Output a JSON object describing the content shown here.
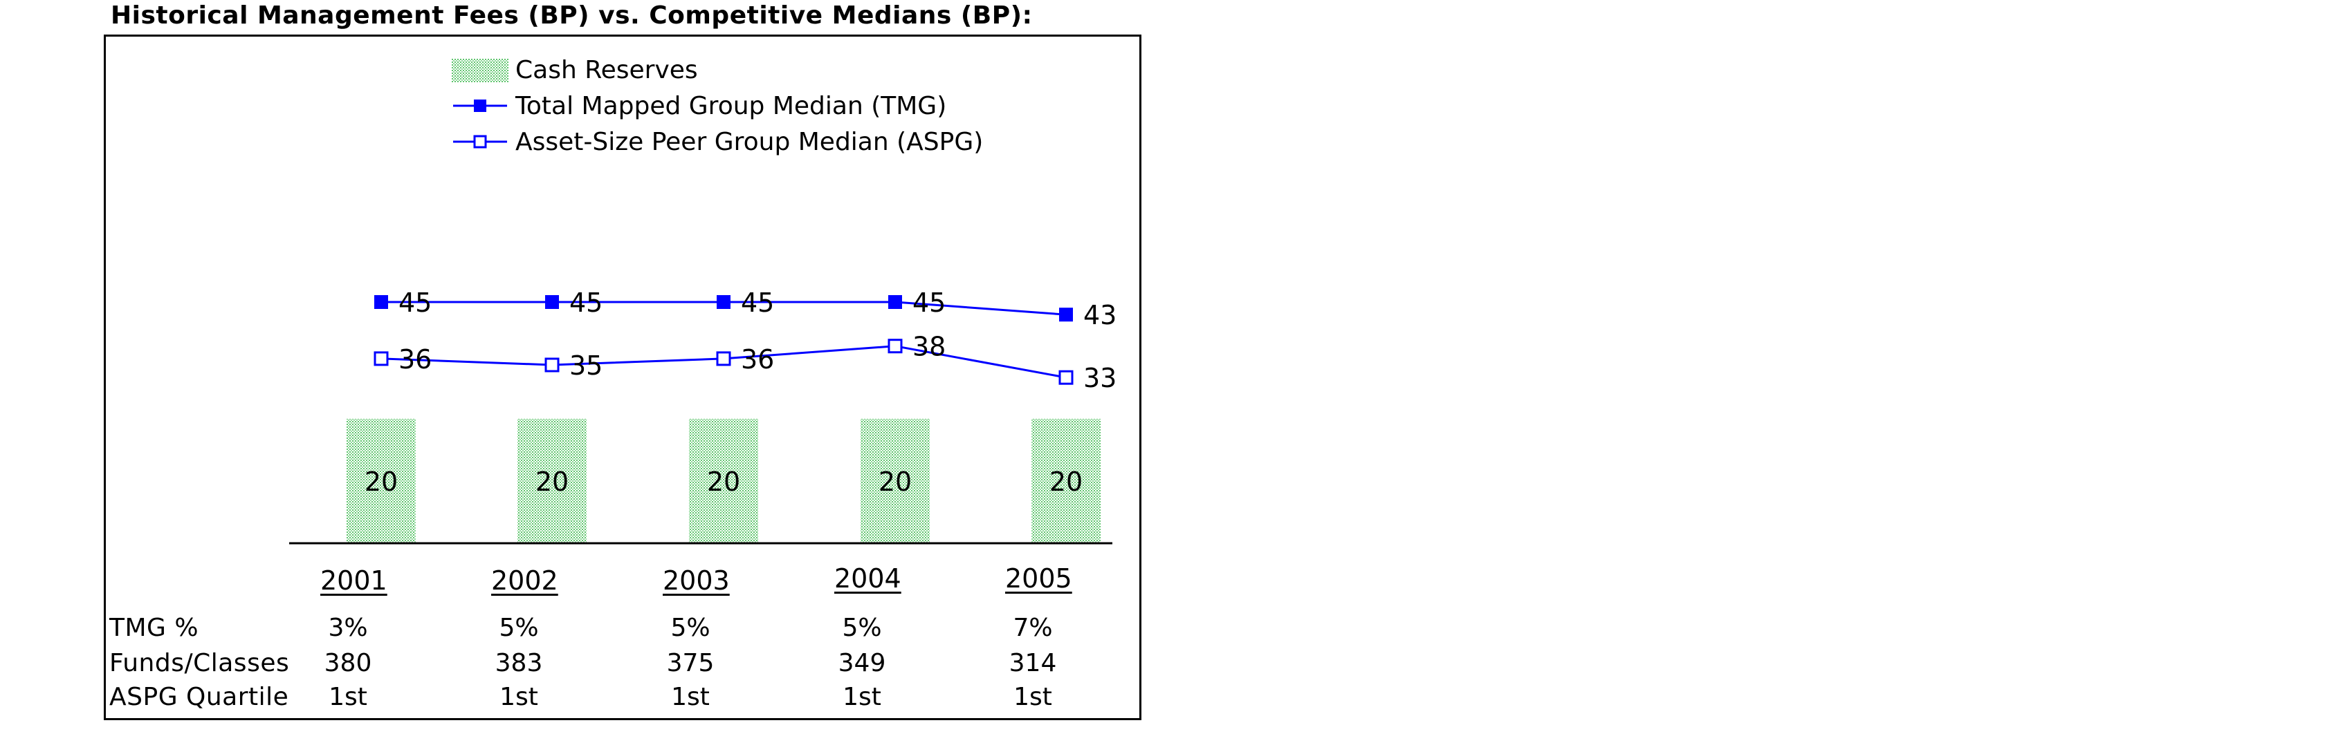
{
  "title": "Historical Management Fees (BP) vs. Competitive Medians (BP):",
  "colors": {
    "line": "#0000ff",
    "bar": "#7fd08a",
    "text": "#000000"
  },
  "chart_data": {
    "type": "bar",
    "categories": [
      "2001",
      "2002",
      "2003",
      "2004",
      "2005"
    ],
    "series": [
      {
        "name": "Cash Reserves",
        "kind": "bar",
        "values": [
          20,
          20,
          20,
          20,
          20
        ]
      },
      {
        "name": "Total Mapped Group Median (TMG)",
        "kind": "line",
        "marker": "filled-square",
        "values": [
          45,
          45,
          45,
          45,
          43
        ]
      },
      {
        "name": "Asset-Size Peer Group Median (ASPG)",
        "kind": "line",
        "marker": "hollow-square",
        "values": [
          36,
          35,
          36,
          38,
          33
        ]
      }
    ],
    "legend": "top-center",
    "grid": false
  },
  "table": {
    "rows": [
      {
        "label": "TMG %",
        "values": [
          "3%",
          "5%",
          "5%",
          "5%",
          "7%"
        ]
      },
      {
        "label": "Funds/Classes",
        "values": [
          "380",
          "383",
          "375",
          "349",
          "314"
        ]
      },
      {
        "label": "ASPG Quartile",
        "values": [
          "1st",
          "1st",
          "1st",
          "1st",
          "1st"
        ]
      }
    ]
  }
}
